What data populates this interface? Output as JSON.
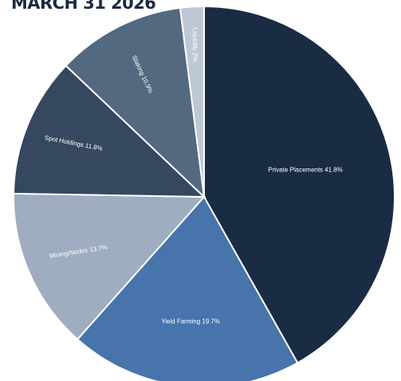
{
  "chart_data": {
    "type": "pie",
    "title": "MARCH 31 2026",
    "slices": [
      {
        "label": "Private Placements",
        "value": 41.8,
        "display": "Private Placements 41.8%",
        "color": "#192c43"
      },
      {
        "label": "Yield Farming",
        "value": 19.7,
        "display": "Yield Farming 19.7%",
        "color": "#4674ab"
      },
      {
        "label": "Mining/Nodes",
        "value": 13.7,
        "display": "Mining/Nodes 13.7%",
        "color": "#9eadbf"
      },
      {
        "label": "Spot Holdings",
        "value": 11.8,
        "display": "Spot Holdings 11.8%",
        "color": "#364760"
      },
      {
        "label": "Staking",
        "value": 10.9,
        "display": "Staking 10.9%",
        "color": "#526980"
      },
      {
        "label": "Liquidity",
        "value": 2,
        "display": "Liquidity 2%",
        "color": "#bec7d4"
      }
    ],
    "start": "12 o'clock",
    "direction": "clockwise",
    "legend": "none",
    "label_placement": "inside"
  }
}
